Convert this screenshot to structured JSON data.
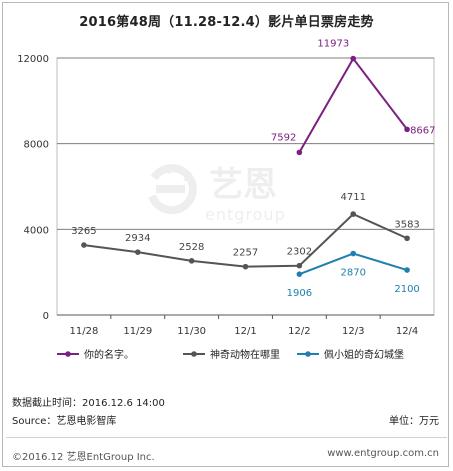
{
  "chart_data": {
    "type": "line",
    "title": "2016第48周（11.28-12.4）影片单日票房走势",
    "categories": [
      "11/28",
      "11/29",
      "11/30",
      "12/1",
      "12/2",
      "12/3",
      "12/4"
    ],
    "ylim": [
      0,
      12000
    ],
    "yticks": [
      "0",
      "4000",
      "8000",
      "12000"
    ],
    "grid": "horizontal",
    "legend_position": "bottom",
    "series": [
      {
        "name": "你的名字。",
        "color": "#7b1f80",
        "values": [
          null,
          null,
          null,
          null,
          7592,
          11973,
          8667
        ],
        "labels": [
          "",
          "",
          "",
          "",
          "7592",
          "11973",
          "8667"
        ]
      },
      {
        "name": "神奇动物在哪里",
        "color": "#555555",
        "values": [
          3265,
          2934,
          2528,
          2257,
          2302,
          4711,
          3583
        ],
        "labels": [
          "3265",
          "2934",
          "2528",
          "2257",
          "2302",
          "4711",
          "3583"
        ]
      },
      {
        "name": "佩小姐的奇幻城堡",
        "color": "#1f7fb0",
        "values": [
          null,
          null,
          null,
          null,
          1906,
          2870,
          2100
        ],
        "labels": [
          "",
          "",
          "",
          "",
          "1906",
          "2870",
          "2100"
        ]
      }
    ]
  },
  "footer": {
    "date_line": "数据截止时间：2016.12.6  14:00",
    "source_line": "Source：艺恩电影智库",
    "unit": "单位：万元",
    "copyright": "©2016.12 艺恩EntGroup Inc.",
    "website": "www.entgroup.com.cn"
  },
  "watermark": {
    "brand_cn": "艺恩",
    "brand_en": "entgroup"
  }
}
